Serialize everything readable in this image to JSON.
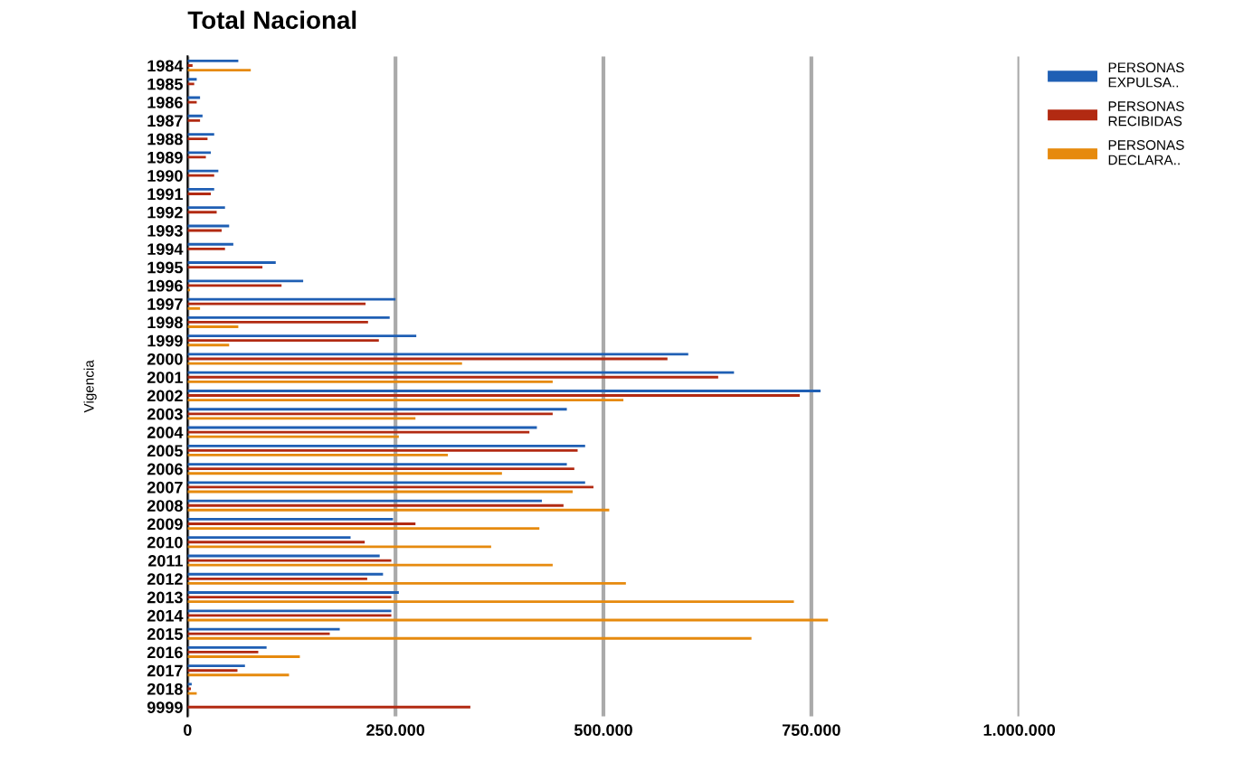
{
  "chart_data": {
    "type": "bar",
    "orientation": "horizontal",
    "title": "Total Nacional",
    "ylabel": "Vigencia",
    "categories": [
      "1984",
      "1985",
      "1986",
      "1987",
      "1988",
      "1989",
      "1990",
      "1991",
      "1992",
      "1993",
      "1994",
      "1995",
      "1996",
      "1997",
      "1998",
      "1999",
      "2000",
      "2001",
      "2002",
      "2003",
      "2004",
      "2005",
      "2006",
      "2007",
      "2008",
      "2009",
      "2010",
      "2011",
      "2012",
      "2013",
      "2014",
      "2015",
      "2016",
      "2017",
      "2018",
      "9999"
    ],
    "series": [
      {
        "name": "PERSONAS EXPULSA..",
        "color": "#1f5fb4",
        "values": [
          61000,
          11000,
          15000,
          18000,
          32000,
          28000,
          37000,
          32000,
          45000,
          50000,
          55000,
          106000,
          139000,
          250000,
          243000,
          275000,
          602000,
          657000,
          761000,
          456000,
          420000,
          478000,
          456000,
          478000,
          426000,
          247000,
          196000,
          231000,
          235000,
          254000,
          245000,
          183000,
          95000,
          69000,
          5000,
          null
        ]
      },
      {
        "name": "PERSONAS RECIBIDAS",
        "color": "#b22a12",
        "values": [
          6000,
          8000,
          11000,
          15000,
          24000,
          22000,
          32000,
          28000,
          35000,
          41000,
          45000,
          90000,
          113000,
          214000,
          217000,
          230000,
          577000,
          638000,
          736000,
          439000,
          411000,
          469000,
          465000,
          488000,
          452000,
          274000,
          213000,
          245000,
          216000,
          245000,
          245000,
          171000,
          85000,
          60000,
          4000,
          340000
        ]
      },
      {
        "name": "PERSONAS DECLARA..",
        "color": "#e68a0e",
        "values": [
          76000,
          null,
          null,
          null,
          null,
          null,
          null,
          null,
          null,
          null,
          null,
          null,
          3000,
          15000,
          61000,
          50000,
          330000,
          439000,
          524000,
          274000,
          254000,
          313000,
          378000,
          463000,
          507000,
          423000,
          365000,
          439000,
          527000,
          729000,
          770000,
          678000,
          135000,
          122000,
          11000,
          null
        ]
      }
    ],
    "xlim": [
      0,
      1000000
    ],
    "xticks": [
      0,
      {
        "value": 250000,
        "label": "250.000"
      },
      {
        "value": 500000,
        "label": "500.000"
      },
      {
        "value": 750000,
        "label": "750.000"
      },
      {
        "value": 1000000,
        "label": "1.000.000"
      }
    ],
    "grid": "x",
    "legend": "right"
  }
}
